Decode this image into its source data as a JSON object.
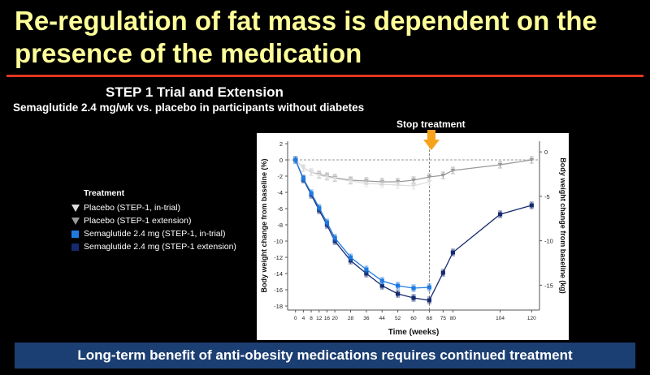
{
  "slide": {
    "title": "Re-regulation of fat mass is dependent on the presence of the medication",
    "subtitle": "STEP 1 Trial and Extension",
    "subtitle2": "Semaglutide 2.4 mg/wk vs. placebo in participants without diabetes",
    "stop_label": "Stop treatment",
    "banner": "Long-term benefit of anti-obesity medications requires continued treatment"
  },
  "colors": {
    "title": "#ffff99",
    "divider": "#e2381f",
    "banner_bg": "#1c3f73",
    "arrow": "#f5a31a",
    "placebo_intrial": "#dddddd",
    "placebo_ext": "#9a9a9a",
    "sema_intrial": "#1f7ae0",
    "sema_ext": "#152a6e"
  },
  "chart_data": {
    "type": "line",
    "xlabel": "Time (weeks)",
    "ylabel": "Body weight change from baseline (%)",
    "ylabel_right": "Body weight change from baseline (kg)",
    "xticks": [
      0,
      4,
      8,
      12,
      16,
      20,
      28,
      36,
      44,
      52,
      60,
      68,
      75,
      80,
      104,
      120
    ],
    "yticks": [
      2,
      0,
      -2,
      -4,
      -6,
      -8,
      -10,
      -12,
      -14,
      -16,
      -18
    ],
    "yticks_right": [
      0,
      -5,
      -10,
      -15
    ],
    "xlim": [
      -4,
      124
    ],
    "ylim": [
      -18.5,
      2.3
    ],
    "ylim_right": [
      -17.8,
      1.2
    ],
    "stop_treatment_week": 68,
    "legend_title": "Treatment",
    "series": [
      {
        "name": "Placebo (STEP-1, in-trial)",
        "key": "placebo_intrial",
        "marker": "triangle",
        "x": [
          0,
          4,
          8,
          12,
          16,
          20,
          28,
          36,
          44,
          52,
          60,
          68
        ],
        "y": [
          0,
          -1.0,
          -1.5,
          -1.9,
          -2.1,
          -2.3,
          -2.6,
          -2.9,
          -3.0,
          -3.1,
          -3.2,
          -2.7
        ]
      },
      {
        "name": "Placebo (STEP-1 extension)",
        "key": "placebo_ext",
        "marker": "triangle",
        "x": [
          0,
          4,
          8,
          12,
          16,
          20,
          28,
          36,
          44,
          52,
          60,
          68,
          75,
          80,
          104,
          120
        ],
        "y": [
          0,
          -1.0,
          -1.5,
          -1.8,
          -2.0,
          -2.2,
          -2.5,
          -2.6,
          -2.7,
          -2.7,
          -2.5,
          -2.1,
          -1.9,
          -1.3,
          -0.6,
          0.0
        ]
      },
      {
        "name": "Semaglutide 2.4 mg (STEP-1, in-trial)",
        "key": "sema_intrial",
        "marker": "square",
        "x": [
          0,
          4,
          8,
          12,
          16,
          20,
          28,
          36,
          44,
          52,
          60,
          68
        ],
        "y": [
          0,
          -2.3,
          -4.1,
          -5.9,
          -7.7,
          -9.6,
          -12.0,
          -13.5,
          -14.9,
          -15.5,
          -15.8,
          -15.7
        ]
      },
      {
        "name": "Semaglutide 2.4 mg (STEP-1 extension)",
        "key": "sema_ext",
        "marker": "square",
        "x": [
          0,
          4,
          8,
          12,
          16,
          20,
          28,
          36,
          44,
          52,
          60,
          68,
          75,
          80,
          104,
          120
        ],
        "y": [
          0,
          -2.4,
          -4.3,
          -6.2,
          -8.0,
          -10.0,
          -12.4,
          -14.0,
          -15.5,
          -16.5,
          -17.0,
          -17.3,
          -13.9,
          -11.4,
          -6.7,
          -5.6
        ]
      }
    ]
  }
}
